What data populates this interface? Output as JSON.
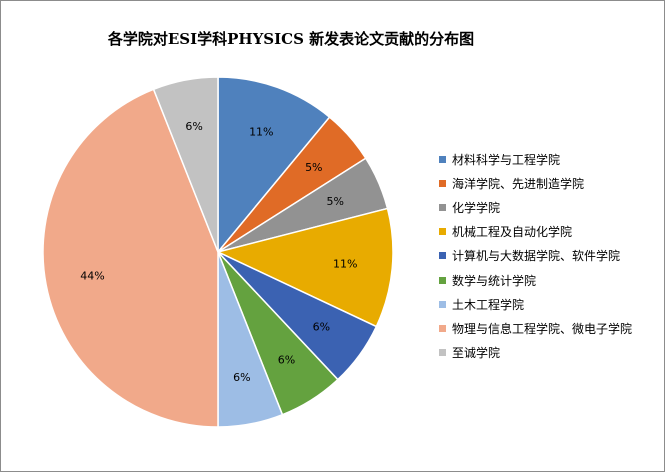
{
  "chart_data": {
    "type": "pie",
    "title": "各学院对ESI学科PHYSICS 新发表论文贡献的分布图",
    "legend_position": "right",
    "slices": [
      {
        "name": "材料科学与工程学院",
        "value": 11,
        "label": "11%",
        "color": "#4f81bd"
      },
      {
        "name": "海洋学院、先进制造学院",
        "value": 5,
        "label": "5%",
        "color": "#e06b26"
      },
      {
        "name": "化学学院",
        "value": 5,
        "label": "5%",
        "color": "#929292"
      },
      {
        "name": "机械工程及自动化学院",
        "value": 11,
        "label": "11%",
        "color": "#e8ab00"
      },
      {
        "name": "计算机与大数据学院、软件学院",
        "value": 6,
        "label": "6%",
        "color": "#3b62b2"
      },
      {
        "name": "数学与统计学院",
        "value": 6,
        "label": "6%",
        "color": "#64a23f"
      },
      {
        "name": "土木工程学院",
        "value": 6,
        "label": "6%",
        "color": "#9dbde5"
      },
      {
        "name": "物理与信息工程学院、微电子学院",
        "value": 44,
        "label": "44%",
        "color": "#f1a98a"
      },
      {
        "name": "至诚学院",
        "value": 6,
        "label": "6%",
        "color": "#c2c2c2"
      }
    ]
  }
}
